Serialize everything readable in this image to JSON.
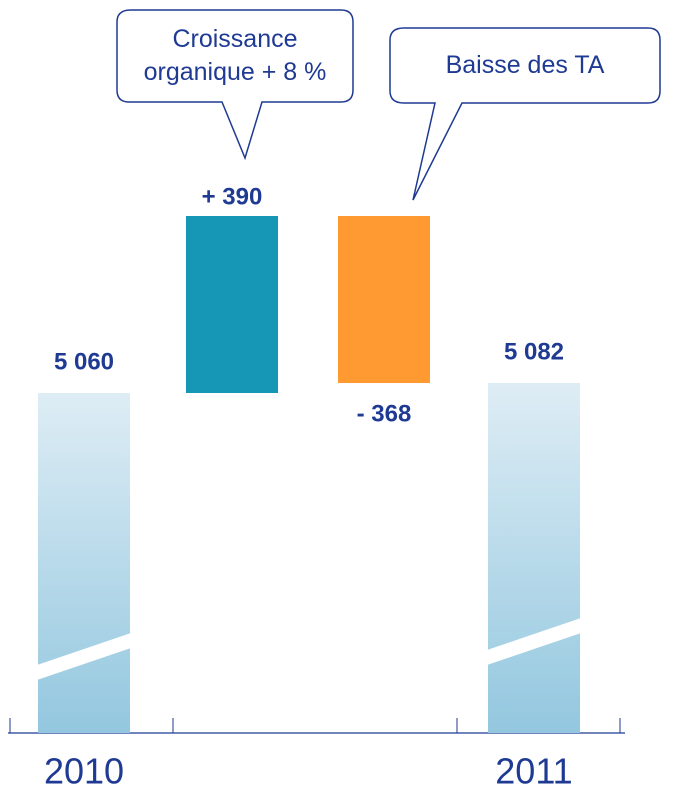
{
  "chart_data": {
    "type": "waterfall",
    "categories": [
      "2010",
      null,
      null,
      "2011"
    ],
    "values": [
      5060,
      390,
      -368,
      5082
    ],
    "value_labels": [
      "5 060",
      "+ 390",
      "- 368",
      "5 082"
    ],
    "annotations": [
      "Croissance\norganique + 8 %",
      "Baisse des TA"
    ],
    "increase_color": "#1597b5",
    "decrease_color": "#ff9a33"
  }
}
